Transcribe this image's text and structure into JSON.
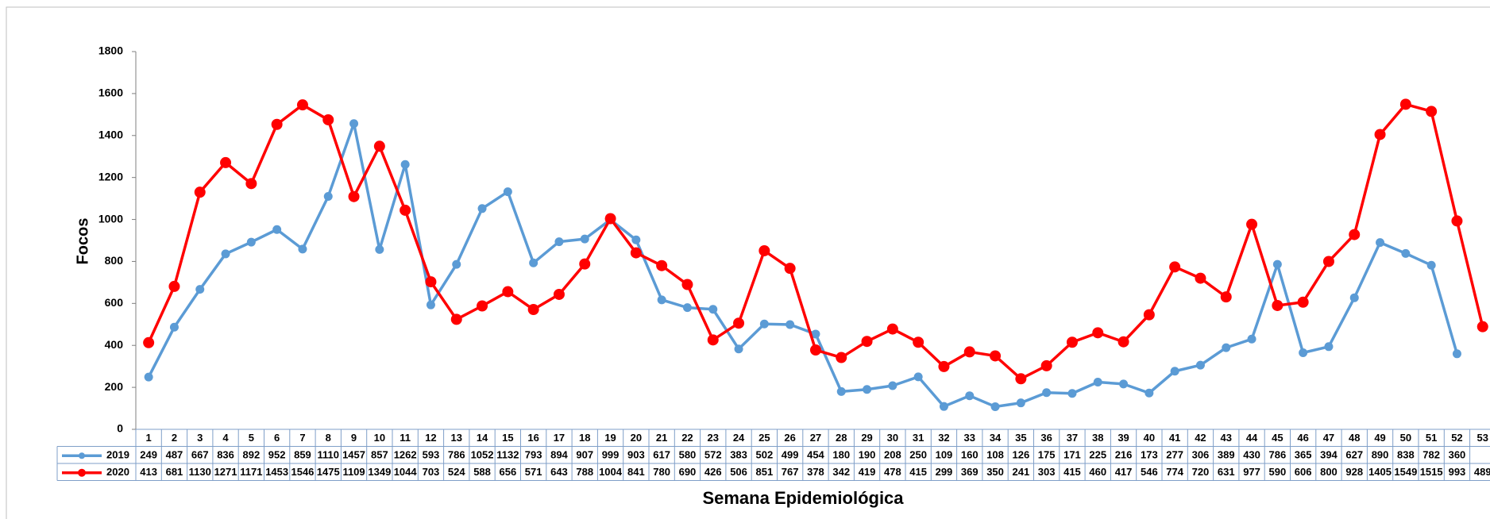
{
  "chart_data": {
    "type": "line",
    "x_label": "Semana Epidemiológica",
    "y_label": "Focos",
    "categories": [
      "1",
      "2",
      "3",
      "4",
      "5",
      "6",
      "7",
      "8",
      "9",
      "10",
      "11",
      "12",
      "13",
      "14",
      "15",
      "16",
      "17",
      "18",
      "19",
      "20",
      "21",
      "22",
      "23",
      "24",
      "25",
      "26",
      "27",
      "28",
      "29",
      "30",
      "31",
      "32",
      "33",
      "34",
      "35",
      "36",
      "37",
      "38",
      "39",
      "40",
      "41",
      "42",
      "43",
      "44",
      "45",
      "46",
      "47",
      "48",
      "49",
      "50",
      "51",
      "52",
      "53"
    ],
    "series": [
      {
        "name": "2019",
        "color": "#5b9bd5",
        "values": [
          249,
          487,
          667,
          836,
          892,
          952,
          859,
          1110,
          1457,
          857,
          1262,
          593,
          786,
          1052,
          1132,
          793,
          894,
          907,
          999,
          903,
          617,
          580,
          572,
          383,
          502,
          499,
          454,
          180,
          190,
          208,
          250,
          109,
          160,
          108,
          126,
          175,
          171,
          225,
          216,
          173,
          277,
          306,
          389,
          430,
          786,
          365,
          394,
          627,
          890,
          838,
          782,
          360,
          null
        ]
      },
      {
        "name": "2020",
        "color": "#ff0000",
        "values": [
          413,
          681,
          1130,
          1271,
          1171,
          1453,
          1546,
          1475,
          1109,
          1349,
          1044,
          703,
          524,
          588,
          656,
          571,
          643,
          788,
          1004,
          841,
          780,
          690,
          426,
          506,
          851,
          767,
          378,
          342,
          419,
          478,
          415,
          299,
          369,
          350,
          241,
          303,
          415,
          460,
          417,
          546,
          774,
          720,
          631,
          977,
          590,
          606,
          800,
          928,
          1405,
          1549,
          1515,
          993,
          489
        ]
      }
    ],
    "ylim": [
      0,
      1800
    ],
    "yticks": [
      0,
      200,
      400,
      600,
      800,
      1000,
      1200,
      1400,
      1600,
      1800
    ]
  }
}
